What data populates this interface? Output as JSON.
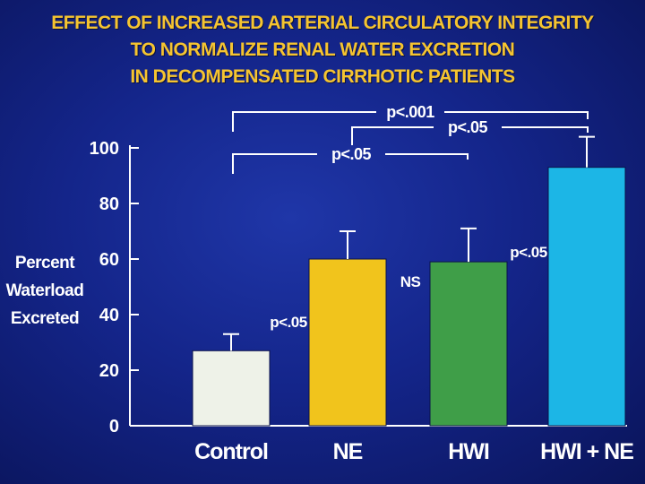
{
  "title_lines": [
    "EFFECT OF INCREASED ARTERIAL CIRCULATORY INTEGRITY",
    "TO NORMALIZE RENAL WATER EXCRETION",
    "IN DECOMPENSATED CIRRHOTIC PATIENTS"
  ],
  "y_axis_label_lines": [
    "Percent",
    "Waterload",
    "Excreted"
  ],
  "colors": {
    "title": "#f5c430",
    "text": "#ffffff",
    "background": "#14258a",
    "control": "#eef2e8",
    "ne": "#f1c41c",
    "hwi": "#3f9e48",
    "hwi_ne": "#1cb6e6"
  },
  "chart_data": {
    "type": "bar",
    "categories": [
      "Control",
      "NE",
      "HWI",
      "HWI + NE"
    ],
    "values": [
      27,
      60,
      59,
      93
    ],
    "error_upper": [
      33,
      70,
      71,
      104
    ],
    "ylim": [
      0,
      100
    ],
    "yticks": [
      0,
      20,
      40,
      60,
      80,
      100
    ],
    "bar_colors": [
      "#eef2e8",
      "#f1c41c",
      "#3f9e48",
      "#1cb6e6"
    ],
    "comparisons": [
      {
        "label": "p<.001",
        "from": "Control",
        "to": "HWI + NE"
      },
      {
        "label": "p<.05",
        "from": "NE",
        "to": "HWI + NE"
      },
      {
        "label": "p<.05",
        "from": "Control",
        "to": "HWI"
      }
    ],
    "annotations": [
      {
        "label": "p<.05",
        "between": [
          "Control",
          "NE"
        ]
      },
      {
        "label": "NS",
        "between": [
          "NE",
          "HWI"
        ]
      },
      {
        "label": "p<.05",
        "between": [
          "HWI",
          "HWI + NE"
        ]
      }
    ]
  }
}
